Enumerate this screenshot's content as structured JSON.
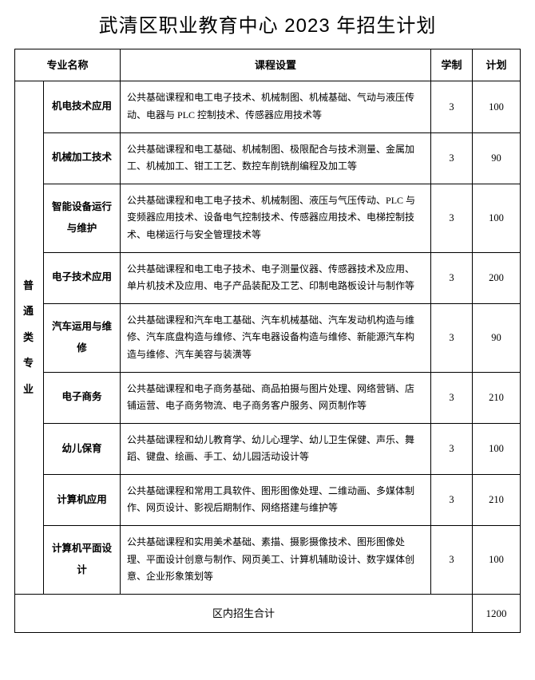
{
  "title": "武清区职业教育中心 2023 年招生计划",
  "headers": {
    "major": "专业名称",
    "course": "课程设置",
    "years": "学制",
    "plan": "计划"
  },
  "category": "普 通 类 专 业",
  "rows": [
    {
      "major": "机电技术应用",
      "course": "公共基础课程和电工电子技术、机械制图、机械基础、气动与液压传动、电器与 PLC 控制技术、传感器应用技术等",
      "years": "3",
      "plan": "100"
    },
    {
      "major": "机械加工技术",
      "course": "公共基础课程和电工基础、机械制图、极限配合与技术测量、金属加工、机械加工、钳工工艺、数控车削铣削编程及加工等",
      "years": "3",
      "plan": "90"
    },
    {
      "major": "智能设备运行与维护",
      "course": "公共基础课程和电工电子技术、机械制图、液压与气压传动、PLC 与变频器应用技术、设备电气控制技术、传感器应用技术、电梯控制技术、电梯运行与安全管理技术等",
      "years": "3",
      "plan": "100"
    },
    {
      "major": "电子技术应用",
      "course": "公共基础课程和电工电子技术、电子测量仪器、传感器技术及应用、单片机技术及应用、电子产品装配及工艺、印制电路板设计与制作等",
      "years": "3",
      "plan": "200"
    },
    {
      "major": "汽车运用与维修",
      "course": "公共基础课程和汽车电工基础、汽车机械基础、汽车发动机构造与维修、汽车底盘构造与维修、汽车电器设备构造与维修、新能源汽车构造与维修、汽车美容与装潢等",
      "years": "3",
      "plan": "90"
    },
    {
      "major": "电子商务",
      "course": "公共基础课程和电子商务基础、商品拍摄与图片处理、网络营销、店铺运营、电子商务物流、电子商务客户服务、网页制作等",
      "years": "3",
      "plan": "210"
    },
    {
      "major": "幼儿保育",
      "course": "公共基础课程和幼儿教育学、幼儿心理学、幼儿卫生保健、声乐、舞蹈、键盘、绘画、手工、幼儿园活动设计等",
      "years": "3",
      "plan": "100"
    },
    {
      "major": "计算机应用",
      "course": "公共基础课程和常用工具软件、图形图像处理、二维动画、多媒体制作、网页设计、影视后期制作、网络搭建与维护等",
      "years": "3",
      "plan": "210"
    },
    {
      "major": "计算机平面设计",
      "course": "公共基础课程和实用美术基础、素描、摄影摄像技术、图形图像处理、平面设计创意与制作、网页美工、计算机辅助设计、数字媒体创意、企业形象策划等",
      "years": "3",
      "plan": "100"
    }
  ],
  "total": {
    "label": "区内招生合计",
    "value": "1200"
  },
  "style": {
    "title_fontsize": 24,
    "header_fontsize": 13,
    "cell_fontsize": 12,
    "border_color": "#000000",
    "background_color": "#ffffff",
    "text_color": "#000000"
  }
}
